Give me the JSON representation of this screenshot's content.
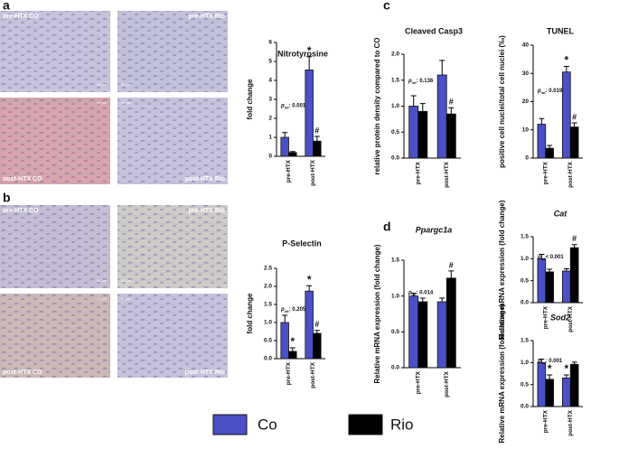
{
  "panel_labels": [
    "a",
    "b",
    "c",
    "d"
  ],
  "scale_label": "50 µm",
  "micrographs": [
    {
      "label": "pre-HTX CO"
    },
    {
      "label": "pre-HTX Rio"
    },
    {
      "label": "post-HTX CO"
    },
    {
      "label": "post-HTX Rio"
    },
    {
      "label": "pre-HTX CO"
    },
    {
      "label": "pre-HTX Rio"
    },
    {
      "label": "post-HTX CO"
    },
    {
      "label": "post-HTX Rio"
    }
  ],
  "chart_data": [
    {
      "type": "bar",
      "title": "Nitrotyrosine",
      "y_label": "fold change",
      "categories": [
        "pre-HTX",
        "post-HTX"
      ],
      "ylim": [
        0,
        6
      ],
      "yticks": [
        0,
        1,
        2,
        3,
        4,
        5,
        6
      ],
      "annotation": {
        "symbol": "p",
        "subscript": "int",
        "text": ": 0.001"
      },
      "series": [
        {
          "name": "Co",
          "color": "#4b50c6",
          "values": [
            1.0,
            4.55
          ],
          "errors": [
            0.25,
            0.7
          ],
          "significance": [
            null,
            "*"
          ]
        },
        {
          "name": "Rio",
          "color": "#000000",
          "values": [
            0.2,
            0.8
          ],
          "errors": [
            0.05,
            0.25
          ],
          "significance": [
            null,
            "#"
          ]
        }
      ]
    },
    {
      "type": "bar",
      "title": "P-Selectin",
      "y_label": "fold change",
      "categories": [
        "pre-HTX",
        "post-HTX"
      ],
      "ylim": [
        0,
        2.5
      ],
      "yticks": [
        {
          "value": 0,
          "label": "0.0"
        },
        0.5,
        {
          "value": 1,
          "label": "1.0"
        },
        1.5,
        {
          "value": 2,
          "label": "2.0"
        },
        2.5
      ],
      "annotation": {
        "symbol": "p",
        "subscript": "int",
        "text": ": 0.205"
      },
      "series": [
        {
          "name": "Co",
          "color": "#4b50c6",
          "values": [
            1.0,
            1.87
          ],
          "errors": [
            0.2,
            0.15
          ],
          "significance": [
            null,
            "*"
          ]
        },
        {
          "name": "Rio",
          "color": "#000000",
          "values": [
            0.2,
            0.7
          ],
          "errors": [
            0.1,
            0.08
          ],
          "significance": [
            "*",
            "#"
          ]
        }
      ]
    },
    {
      "type": "bar",
      "title": "Cleaved Casp3",
      "y_label": "relative protein density compared to CO",
      "categories": [
        "pre-HTX",
        "post-HTX"
      ],
      "ylim": [
        0,
        2
      ],
      "yticks": [
        {
          "value": 0,
          "label": "0.0"
        },
        0.5,
        {
          "value": 1,
          "label": "1.0"
        },
        1.5,
        {
          "value": 2,
          "label": "2.0"
        }
      ],
      "annotation": {
        "symbol": "p",
        "subscript": "int",
        "text": ": 0.136"
      },
      "series": [
        {
          "name": "Co",
          "color": "#4b50c6",
          "values": [
            1.0,
            1.6
          ],
          "errors": [
            0.2,
            0.28
          ],
          "significance": [
            null,
            null
          ]
        },
        {
          "name": "Rio",
          "color": "#000000",
          "values": [
            0.9,
            0.85
          ],
          "errors": [
            0.15,
            0.12
          ],
          "significance": [
            null,
            "#"
          ]
        }
      ]
    },
    {
      "type": "bar",
      "title": "TUNEL",
      "y_label": "positive cell nuclei/total cell nuclei (‰)",
      "categories": [
        "pre-HTX",
        "post-HTX"
      ],
      "ylim": [
        0,
        40
      ],
      "yticks": [
        0,
        10,
        20,
        30,
        40
      ],
      "annotation": {
        "symbol": "p",
        "subscript": "int",
        "text": ": 0.019"
      },
      "series": [
        {
          "name": "Co",
          "color": "#4b50c6",
          "values": [
            12,
            30.5
          ],
          "errors": [
            2,
            2
          ],
          "significance": [
            null,
            "*"
          ]
        },
        {
          "name": "Rio",
          "color": "#000000",
          "values": [
            3.5,
            11
          ],
          "errors": [
            1,
            1.5
          ],
          "significance": [
            null,
            "#"
          ]
        }
      ]
    },
    {
      "type": "bar",
      "title": "Ppargc1a",
      "title_style": "italic",
      "y_label": "Relative mRNA expression (fold change)",
      "categories": [
        "pre-HTX",
        "post-HTX"
      ],
      "ylim": [
        0,
        1.5
      ],
      "yticks": [
        {
          "value": 0,
          "label": "0.0"
        },
        0.5,
        {
          "value": 1,
          "label": "1.0"
        },
        1.5
      ],
      "annotation": {
        "symbol": "p",
        "subscript": "int",
        "text": ": 0.014"
      },
      "series": [
        {
          "name": "Co",
          "color": "#4b50c6",
          "values": [
            1.0,
            0.92
          ],
          "errors": [
            0.04,
            0.05
          ],
          "significance": [
            null,
            null
          ]
        },
        {
          "name": "Rio",
          "color": "#000000",
          "values": [
            0.92,
            1.25
          ],
          "errors": [
            0.05,
            0.1
          ],
          "significance": [
            null,
            "#"
          ]
        }
      ]
    },
    {
      "type": "bar",
      "title": "Cat",
      "title_style": "italic",
      "y_label": "Relative mRNA expression (fold change)",
      "categories": [
        "pre-HTX",
        "post-HTX"
      ],
      "ylim": [
        0,
        1.5
      ],
      "yticks": [
        {
          "value": 0,
          "label": "0.0"
        },
        0.5,
        {
          "value": 1,
          "label": "1.0"
        },
        1.5
      ],
      "annotation": {
        "symbol": "p",
        "subscript": "int",
        "text": "< 0.001"
      },
      "series": [
        {
          "name": "Co",
          "color": "#4b50c6",
          "values": [
            1.0,
            0.72
          ],
          "errors": [
            0.1,
            0.05
          ],
          "significance": [
            null,
            null
          ]
        },
        {
          "name": "Rio",
          "color": "#000000",
          "values": [
            0.7,
            1.25
          ],
          "errors": [
            0.06,
            0.07
          ],
          "significance": [
            null,
            "#"
          ]
        }
      ]
    },
    {
      "type": "bar",
      "title": "Sod2",
      "title_style": "italic",
      "y_label": "Relative mRNA expression (fold change)",
      "categories": [
        "pre-HTX",
        "post-HTX"
      ],
      "ylim": [
        0,
        1.5
      ],
      "yticks": [
        {
          "value": 0,
          "label": "0.0"
        },
        0.5,
        {
          "value": 1,
          "label": "1.0"
        },
        1.5
      ],
      "annotation": {
        "symbol": "p",
        "subscript": "int",
        "text": ": 0.001"
      },
      "series": [
        {
          "name": "Co",
          "color": "#4b50c6",
          "values": [
            1.0,
            0.65
          ],
          "errors": [
            0.08,
            0.07
          ],
          "significance": [
            null,
            "*"
          ]
        },
        {
          "name": "Rio",
          "color": "#000000",
          "values": [
            0.62,
            0.96
          ],
          "errors": [
            0.1,
            0.05
          ],
          "significance": [
            "*",
            null
          ]
        }
      ]
    }
  ]
}
